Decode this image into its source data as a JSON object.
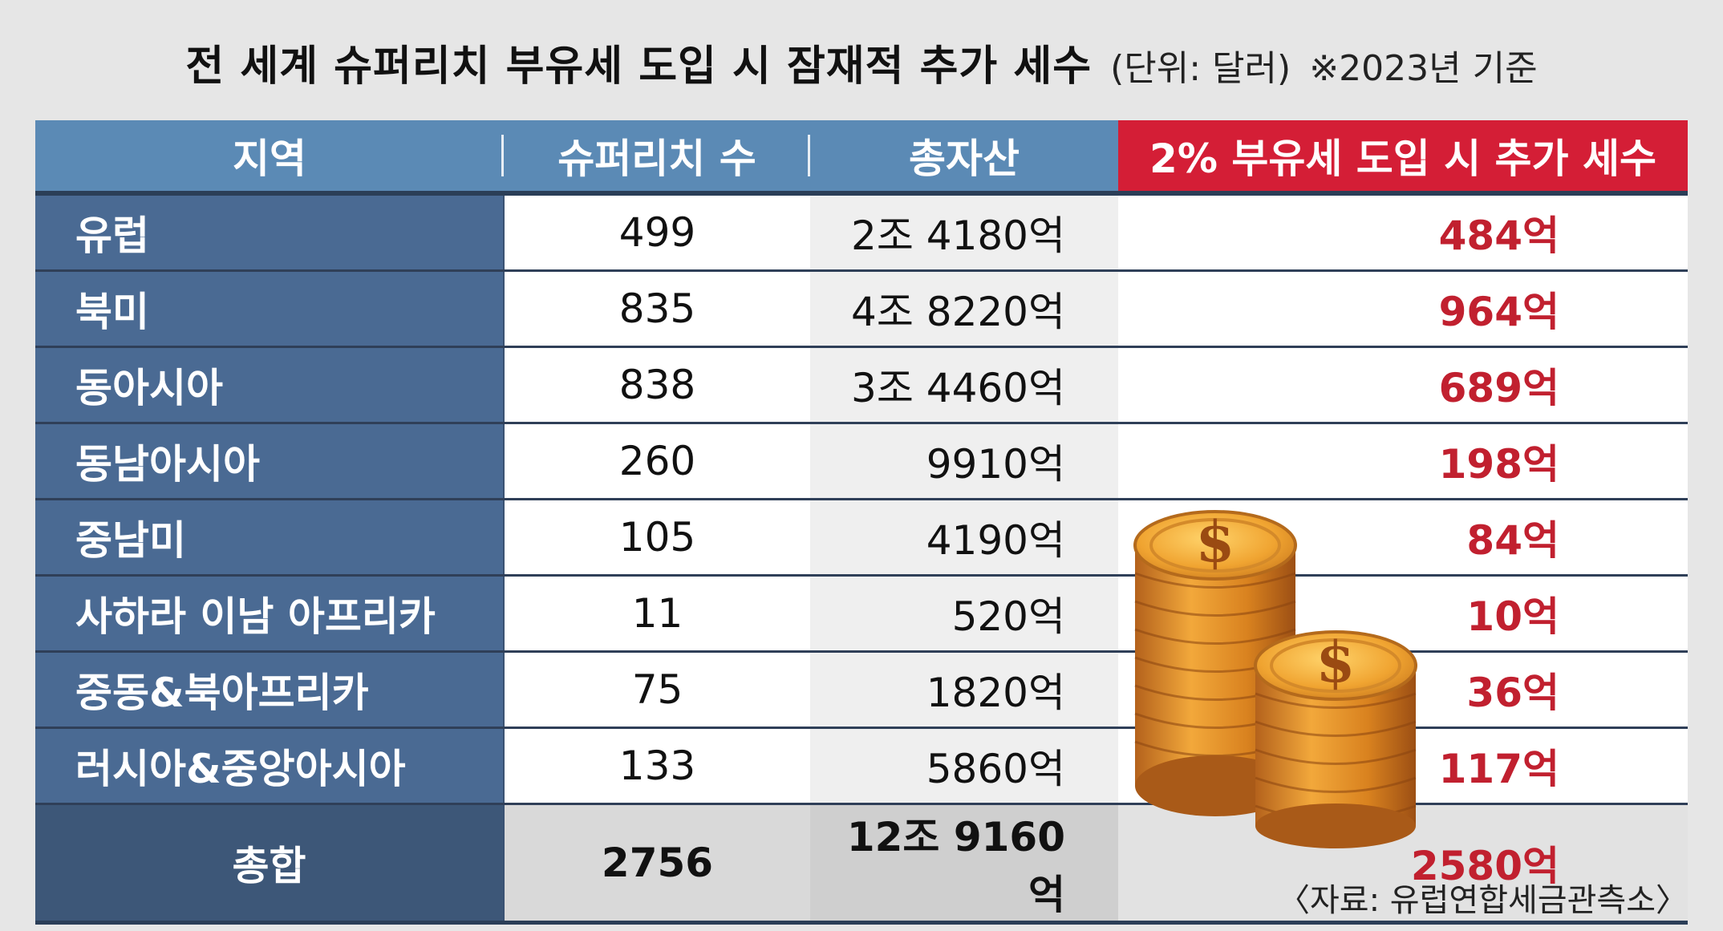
{
  "title": {
    "main": "전 세계 슈퍼리치 부유세 도입 시  잠재적 추가 세수",
    "unit": "(단위: 달러)",
    "basis": "※2023년 기준"
  },
  "chart_data": {
    "type": "table",
    "columns": [
      "지역",
      "슈퍼리치 수",
      "총자산",
      "2% 부유세 도입 시 추가 세수"
    ],
    "rows": [
      {
        "region": "유럽",
        "count": "499",
        "assets": "2조 4180억",
        "tax": "484억"
      },
      {
        "region": "북미",
        "count": "835",
        "assets": "4조 8220억",
        "tax": "964억"
      },
      {
        "region": "동아시아",
        "count": "838",
        "assets": "3조 4460억",
        "tax": "689억"
      },
      {
        "region": "동남아시아",
        "count": "260",
        "assets": "9910억",
        "tax": "198억"
      },
      {
        "region": "중남미",
        "count": "105",
        "assets": "4190억",
        "tax": "84억"
      },
      {
        "region": "사하라 이남 아프리카",
        "count": "11",
        "assets": "520억",
        "tax": "10억"
      },
      {
        "region": "중동&북아프리카",
        "count": "75",
        "assets": "1820억",
        "tax": "36억"
      },
      {
        "region": "러시아&중앙아시아",
        "count": "133",
        "assets": "5860억",
        "tax": "117억"
      }
    ],
    "total": {
      "region": "총합",
      "count": "2756",
      "assets": "12조 9160억",
      "tax": "2580억"
    }
  },
  "source": "〈자료: 유럽연합세금관측소〉",
  "colors": {
    "header_blue": "#5b8ab5",
    "header_red": "#d41e36",
    "region_blue": "#4a6a93",
    "tax_red": "#c1202f"
  },
  "icons": [
    "dollar-coin-stack-icon"
  ]
}
